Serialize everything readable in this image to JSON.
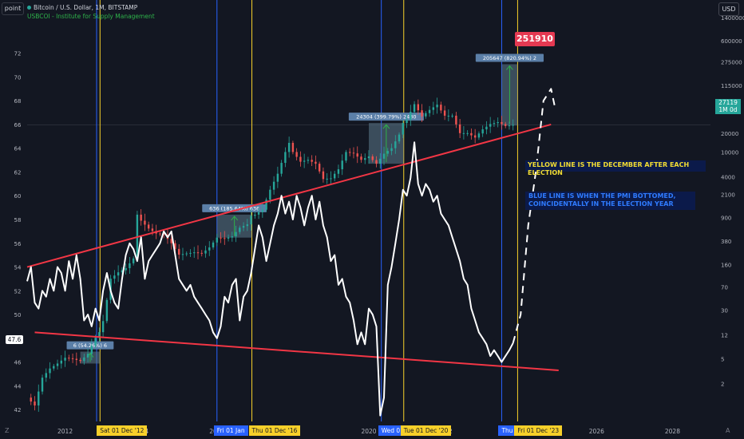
{
  "header": {
    "mode_button": "point",
    "currency_button": "USD",
    "series_title": "Bitcoin / U.S. Dollar, 1M, BITSTAMP",
    "indicator_title": "USBCOI - Institute for Supply Management"
  },
  "annotations": {
    "yellow_note": "YELLOW LINE IS THE DECEMBER AFTER EACH ELECTION",
    "blue_note_line1": "BLUE LINE IS WHEN THE PMI BOTTOMED,",
    "blue_note_line2": "COINCIDENTALLY IN THE ELECTION YEAR",
    "target_badge": "251910",
    "pmi_last": "47.6",
    "price_last": "27119",
    "price_last_sub": "1M 0d",
    "corner_left": "Z",
    "corner_right": "A"
  },
  "colors": {
    "background": "#131722",
    "up_candle": "#26a69a",
    "down_candle": "#ef5350",
    "pmi_line": "#ffffff",
    "trendline": "#f23645",
    "election_line": "#f7d02a",
    "pmi_bottom_line": "#2962ff",
    "measure_box": "#5d7a8c",
    "badge": "#e53952"
  },
  "chart_data": {
    "type": "line",
    "title": "Bitcoin / U.S. Dollar, 1M, BITSTAMP",
    "xlabel": "",
    "ylabel": "",
    "grid": false,
    "x_range": [
      2011.0,
      2029.0
    ],
    "x_ticks": [
      "2012",
      "2014",
      "2016",
      "2018",
      "2020",
      "2022",
      "2024",
      "2026",
      "2028"
    ],
    "left_axis": {
      "label": "PMI",
      "range": [
        41,
        75
      ],
      "ticks": [
        "42",
        "44",
        "46",
        "48",
        "50",
        "52",
        "54",
        "56",
        "58",
        "60",
        "62",
        "64",
        "66",
        "68",
        "70",
        "72"
      ]
    },
    "right_axis": {
      "label": "BTC (log)",
      "scale": "log",
      "range": [
        0.5,
        1400000
      ],
      "ticks": [
        "2",
        "5",
        "12",
        "30",
        "70",
        "160",
        "380",
        "900",
        "2100",
        "4000",
        "10000",
        "20000",
        "50000",
        "115000",
        "275000",
        "600000",
        "1400000"
      ]
    },
    "date_markers": [
      {
        "label": "Sat 01 Dec '12",
        "date": 2012.92,
        "color": "yellow"
      },
      {
        "label": "Fri 01 Jan",
        "date": 2016.0,
        "color": "blue"
      },
      {
        "label": "Thu 01 Dec '16",
        "date": 2016.92,
        "color": "yellow"
      },
      {
        "label": "Wed 01",
        "date": 2020.33,
        "color": "blue"
      },
      {
        "label": "Tue 01 Dec '20",
        "date": 2020.92,
        "color": "yellow"
      },
      {
        "label": "Thu 0",
        "date": 2023.5,
        "color": "blue"
      },
      {
        "label": "Fri 01 Dec '23",
        "date": 2023.92,
        "color": "yellow"
      }
    ],
    "extra_lines": [
      {
        "date": 2012.83,
        "color": "blue"
      }
    ],
    "measures": [
      {
        "label": "6 (54.26%) 6",
        "x_start": 2012.4,
        "x_end": 2012.92,
        "from": 4.2,
        "to": 6.5
      },
      {
        "label": "636 (185.64%) 636",
        "x_start": 2016.0,
        "x_end": 2016.92,
        "from": 430,
        "to": 1000
      },
      {
        "label": "24304 (399.79%) 2430",
        "x_start": 2020.0,
        "x_end": 2020.92,
        "from": 6500,
        "to": 29000
      },
      {
        "label": "205647 (820.94%) 2",
        "x_start": 2023.5,
        "x_end": 2023.92,
        "from": 26500,
        "to": 251910
      }
    ],
    "series": [
      {
        "name": "USBCOI",
        "points": [
          [
            2011.0,
            52.8
          ],
          [
            2011.1,
            54.0
          ],
          [
            2011.2,
            51.0
          ],
          [
            2011.3,
            50.5
          ],
          [
            2011.4,
            52.0
          ],
          [
            2011.5,
            51.5
          ],
          [
            2011.6,
            53.0
          ],
          [
            2011.7,
            52.0
          ],
          [
            2011.8,
            54.0
          ],
          [
            2011.9,
            53.5
          ],
          [
            2012.0,
            52.0
          ],
          [
            2012.1,
            54.5
          ],
          [
            2012.2,
            53.0
          ],
          [
            2012.3,
            55.0
          ],
          [
            2012.4,
            53.0
          ],
          [
            2012.5,
            49.5
          ],
          [
            2012.6,
            50.0
          ],
          [
            2012.7,
            49.0
          ],
          [
            2012.8,
            50.5
          ],
          [
            2012.9,
            49.5
          ],
          [
            2013.0,
            52.0
          ],
          [
            2013.1,
            53.5
          ],
          [
            2013.2,
            52.0
          ],
          [
            2013.3,
            51.0
          ],
          [
            2013.4,
            50.5
          ],
          [
            2013.5,
            53.0
          ],
          [
            2013.6,
            55.0
          ],
          [
            2013.7,
            56.0
          ],
          [
            2013.8,
            55.5
          ],
          [
            2013.9,
            54.5
          ],
          [
            2014.0,
            56.5
          ],
          [
            2014.1,
            53.0
          ],
          [
            2014.2,
            54.5
          ],
          [
            2014.3,
            55.0
          ],
          [
            2014.4,
            55.5
          ],
          [
            2014.5,
            56.0
          ],
          [
            2014.6,
            57.0
          ],
          [
            2014.7,
            56.5
          ],
          [
            2014.8,
            57.0
          ],
          [
            2014.9,
            55.0
          ],
          [
            2015.0,
            53.0
          ],
          [
            2015.1,
            52.5
          ],
          [
            2015.2,
            52.0
          ],
          [
            2015.3,
            52.5
          ],
          [
            2015.4,
            51.5
          ],
          [
            2015.5,
            51.0
          ],
          [
            2015.6,
            50.5
          ],
          [
            2015.7,
            50.0
          ],
          [
            2015.8,
            49.5
          ],
          [
            2015.9,
            48.5
          ],
          [
            2016.0,
            48.0
          ],
          [
            2016.1,
            49.0
          ],
          [
            2016.2,
            51.5
          ],
          [
            2016.3,
            51.0
          ],
          [
            2016.4,
            52.5
          ],
          [
            2016.5,
            53.0
          ],
          [
            2016.6,
            49.5
          ],
          [
            2016.7,
            51.5
          ],
          [
            2016.8,
            52.0
          ],
          [
            2016.9,
            53.5
          ],
          [
            2017.0,
            55.5
          ],
          [
            2017.1,
            57.5
          ],
          [
            2017.2,
            56.5
          ],
          [
            2017.3,
            54.5
          ],
          [
            2017.4,
            56.0
          ],
          [
            2017.5,
            57.5
          ],
          [
            2017.6,
            58.5
          ],
          [
            2017.7,
            60.0
          ],
          [
            2017.8,
            58.5
          ],
          [
            2017.9,
            59.5
          ],
          [
            2018.0,
            58.0
          ],
          [
            2018.1,
            60.0
          ],
          [
            2018.2,
            59.0
          ],
          [
            2018.3,
            57.5
          ],
          [
            2018.4,
            59.0
          ],
          [
            2018.5,
            60.0
          ],
          [
            2018.6,
            58.0
          ],
          [
            2018.7,
            59.5
          ],
          [
            2018.8,
            57.5
          ],
          [
            2018.9,
            56.5
          ],
          [
            2019.0,
            54.5
          ],
          [
            2019.1,
            55.0
          ],
          [
            2019.2,
            52.5
          ],
          [
            2019.3,
            53.0
          ],
          [
            2019.4,
            51.5
          ],
          [
            2019.5,
            51.0
          ],
          [
            2019.6,
            49.5
          ],
          [
            2019.7,
            47.5
          ],
          [
            2019.8,
            48.5
          ],
          [
            2019.9,
            47.5
          ],
          [
            2020.0,
            50.5
          ],
          [
            2020.1,
            50.0
          ],
          [
            2020.2,
            49.0
          ],
          [
            2020.3,
            41.5
          ],
          [
            2020.4,
            43.0
          ],
          [
            2020.5,
            52.5
          ],
          [
            2020.6,
            54.0
          ],
          [
            2020.7,
            56.0
          ],
          [
            2020.8,
            58.0
          ],
          [
            2020.9,
            60.5
          ],
          [
            2021.0,
            60.0
          ],
          [
            2021.1,
            61.5
          ],
          [
            2021.2,
            64.5
          ],
          [
            2021.3,
            61.0
          ],
          [
            2021.4,
            60.0
          ],
          [
            2021.5,
            61.0
          ],
          [
            2021.6,
            60.5
          ],
          [
            2021.7,
            59.5
          ],
          [
            2021.8,
            60.0
          ],
          [
            2021.9,
            58.5
          ],
          [
            2022.0,
            58.0
          ],
          [
            2022.1,
            57.5
          ],
          [
            2022.2,
            56.5
          ],
          [
            2022.3,
            55.5
          ],
          [
            2022.4,
            54.5
          ],
          [
            2022.5,
            53.0
          ],
          [
            2022.6,
            52.5
          ],
          [
            2022.7,
            50.5
          ],
          [
            2022.8,
            49.5
          ],
          [
            2022.9,
            48.5
          ],
          [
            2023.0,
            48.0
          ],
          [
            2023.1,
            47.5
          ],
          [
            2023.2,
            46.5
          ],
          [
            2023.3,
            47.0
          ],
          [
            2023.4,
            46.5
          ],
          [
            2023.5,
            46.0
          ],
          [
            2023.6,
            46.5
          ],
          [
            2023.7,
            47.0
          ],
          [
            2023.8,
            47.6
          ]
        ]
      },
      {
        "name": "USBCOI projection",
        "points": [
          [
            2023.8,
            47.6
          ],
          [
            2024.0,
            50.0
          ],
          [
            2024.2,
            57.5
          ],
          [
            2024.4,
            62.0
          ],
          [
            2024.6,
            68.0
          ],
          [
            2024.8,
            69.0
          ],
          [
            2024.9,
            67.5
          ]
        ]
      },
      {
        "name": "BTCUSD",
        "points": [
          [
            2011.0,
            1.2
          ],
          [
            2011.2,
            0.9
          ],
          [
            2011.4,
            2.5
          ],
          [
            2011.6,
            3.5
          ],
          [
            2011.8,
            4.2
          ],
          [
            2012.0,
            5.2
          ],
          [
            2012.2,
            5.0
          ],
          [
            2012.4,
            4.6
          ],
          [
            2012.6,
            6.0
          ],
          [
            2012.8,
            10.8
          ],
          [
            2012.9,
            13.3
          ],
          [
            2013.0,
            20.0
          ],
          [
            2013.2,
            95.0
          ],
          [
            2013.4,
            120.0
          ],
          [
            2013.6,
            140.0
          ],
          [
            2013.8,
            200.0
          ],
          [
            2013.9,
            1000.0
          ],
          [
            2014.0,
            800.0
          ],
          [
            2014.2,
            600.0
          ],
          [
            2014.4,
            500.0
          ],
          [
            2014.6,
            480.0
          ],
          [
            2014.8,
            350.0
          ],
          [
            2015.0,
            230.0
          ],
          [
            2015.2,
            240.0
          ],
          [
            2015.4,
            250.0
          ],
          [
            2015.6,
            240.0
          ],
          [
            2015.8,
            300.0
          ],
          [
            2016.0,
            430.0
          ],
          [
            2016.2,
            415.0
          ],
          [
            2016.4,
            450.0
          ],
          [
            2016.6,
            620.0
          ],
          [
            2016.8,
            700.0
          ],
          [
            2016.9,
            960.0
          ],
          [
            2017.0,
            1000.0
          ],
          [
            2017.2,
            1200.0
          ],
          [
            2017.4,
            2500.0
          ],
          [
            2017.6,
            4500.0
          ],
          [
            2017.8,
            10000.0
          ],
          [
            2017.9,
            14000.0
          ],
          [
            2018.0,
            10000.0
          ],
          [
            2018.2,
            7000.0
          ],
          [
            2018.4,
            7500.0
          ],
          [
            2018.6,
            6500.0
          ],
          [
            2018.8,
            3700.0
          ],
          [
            2019.0,
            3800.0
          ],
          [
            2019.2,
            5300.0
          ],
          [
            2019.4,
            10000.0
          ],
          [
            2019.6,
            9500.0
          ],
          [
            2019.8,
            7500.0
          ],
          [
            2020.0,
            8500.0
          ],
          [
            2020.2,
            6500.0
          ],
          [
            2020.4,
            9400.0
          ],
          [
            2020.6,
            11500.0
          ],
          [
            2020.8,
            19000.0
          ],
          [
            2020.9,
            29000.0
          ],
          [
            2021.0,
            33000.0
          ],
          [
            2021.2,
            58000.0
          ],
          [
            2021.4,
            37000.0
          ],
          [
            2021.6,
            47000.0
          ],
          [
            2021.8,
            57000.0
          ],
          [
            2021.9,
            46000.0
          ],
          [
            2022.0,
            38000.0
          ],
          [
            2022.2,
            38000.0
          ],
          [
            2022.4,
            20000.0
          ],
          [
            2022.6,
            20000.0
          ],
          [
            2022.8,
            17000.0
          ],
          [
            2023.0,
            23000.0
          ],
          [
            2023.2,
            28000.0
          ],
          [
            2023.4,
            30000.0
          ],
          [
            2023.6,
            26000.0
          ],
          [
            2023.8,
            27119.0
          ]
        ]
      }
    ],
    "trendlines": [
      {
        "name": "upper",
        "from": [
          2011.0,
          54.0
        ],
        "to": [
          2024.8,
          66.0
        ]
      },
      {
        "name": "lower",
        "from": [
          2011.2,
          48.5
        ],
        "to": [
          2025.0,
          45.3
        ]
      }
    ]
  }
}
